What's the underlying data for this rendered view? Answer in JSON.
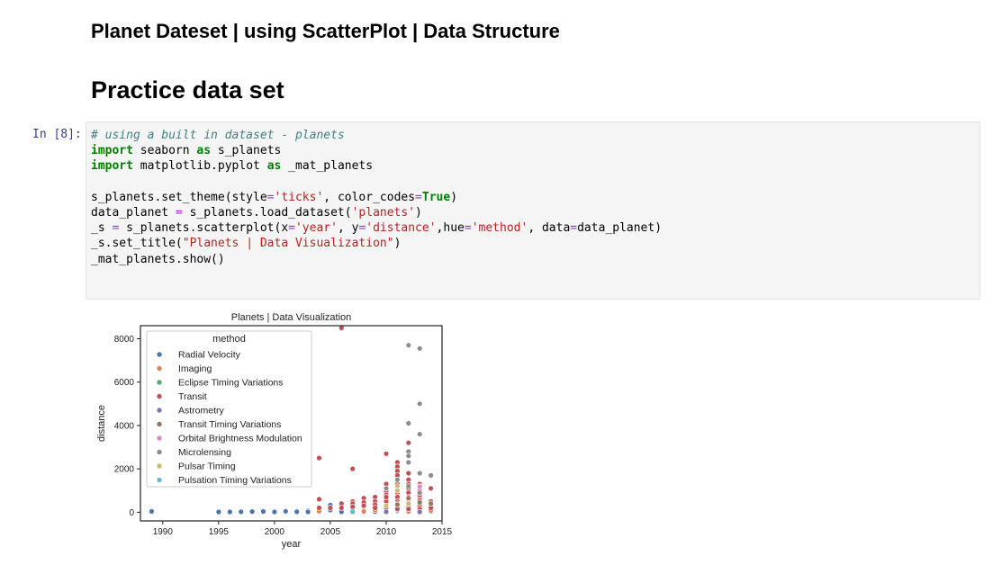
{
  "notebook": {
    "heading_2": "Planet Dateset | using ScatterPlot | Data Structure",
    "heading_1": "Practice data set",
    "cell": {
      "prompt": "In [8]:",
      "code_lines": [
        [
          {
            "t": "c",
            "v": "# using a built in dataset - planets"
          }
        ],
        [
          {
            "t": "k",
            "v": "import"
          },
          {
            "t": "n",
            "v": " seaborn "
          },
          {
            "t": "k",
            "v": "as"
          },
          {
            "t": "n",
            "v": " s_planets"
          }
        ],
        [
          {
            "t": "k",
            "v": "import"
          },
          {
            "t": "n",
            "v": " matplotlib.pyplot "
          },
          {
            "t": "k",
            "v": "as"
          },
          {
            "t": "n",
            "v": " _mat_planets"
          }
        ],
        [
          {
            "t": "n",
            "v": ""
          }
        ],
        [
          {
            "t": "n",
            "v": "s_planets.set_theme(style"
          },
          {
            "t": "o",
            "v": "="
          },
          {
            "t": "s",
            "v": "'ticks'"
          },
          {
            "t": "n",
            "v": ", color_codes"
          },
          {
            "t": "o",
            "v": "="
          },
          {
            "t": "kc",
            "v": "True"
          },
          {
            "t": "n",
            "v": ")"
          }
        ],
        [
          {
            "t": "n",
            "v": "data_planet "
          },
          {
            "t": "o",
            "v": "="
          },
          {
            "t": "n",
            "v": " s_planets.load_dataset("
          },
          {
            "t": "s",
            "v": "'planets'"
          },
          {
            "t": "n",
            "v": ")"
          }
        ],
        [
          {
            "t": "n",
            "v": "_s "
          },
          {
            "t": "o",
            "v": "="
          },
          {
            "t": "n",
            "v": " s_planets.scatterplot(x"
          },
          {
            "t": "o",
            "v": "="
          },
          {
            "t": "s",
            "v": "'year'"
          },
          {
            "t": "n",
            "v": ", y"
          },
          {
            "t": "o",
            "v": "="
          },
          {
            "t": "s",
            "v": "'distance'"
          },
          {
            "t": "n",
            "v": ",hue"
          },
          {
            "t": "o",
            "v": "="
          },
          {
            "t": "s",
            "v": "'method'"
          },
          {
            "t": "n",
            "v": ", data"
          },
          {
            "t": "o",
            "v": "="
          },
          {
            "t": "n",
            "v": "data_planet)"
          }
        ],
        [
          {
            "t": "n",
            "v": "_s.set_title("
          },
          {
            "t": "s",
            "v": "\"Planets | Data Visualization\""
          },
          {
            "t": "n",
            "v": ")"
          }
        ],
        [
          {
            "t": "n",
            "v": "_mat_planets.show()"
          }
        ]
      ]
    }
  },
  "chart_data": {
    "type": "scatter",
    "title": "Planets | Data Visualization",
    "xlabel": "year",
    "ylabel": "distance",
    "xlim": [
      1988,
      2015
    ],
    "ylim": [
      -400,
      8600
    ],
    "xticks": [
      1990,
      1995,
      2000,
      2005,
      2010,
      2015
    ],
    "yticks": [
      0,
      2000,
      4000,
      6000,
      8000
    ],
    "legend_title": "method",
    "legend_position": "upper-left",
    "series": [
      {
        "name": "Radial Velocity",
        "color": "#4c72b0",
        "points": [
          [
            1989,
            40
          ],
          [
            1995,
            15
          ],
          [
            1996,
            15
          ],
          [
            1997,
            20
          ],
          [
            1998,
            30
          ],
          [
            1999,
            35
          ],
          [
            2000,
            40
          ],
          [
            2001,
            45
          ],
          [
            2002,
            50
          ],
          [
            2003,
            60
          ],
          [
            2004,
            60
          ],
          [
            2005,
            100
          ],
          [
            2005,
            330
          ],
          [
            2006,
            70
          ],
          [
            2007,
            80
          ],
          [
            2008,
            60
          ],
          [
            2009,
            80
          ],
          [
            2010,
            60
          ],
          [
            2011,
            60
          ],
          [
            2012,
            50
          ],
          [
            2013,
            40
          ],
          [
            2014,
            40
          ],
          [
            2004,
            30
          ],
          [
            2002,
            20
          ],
          [
            2000,
            15
          ],
          [
            2003,
            15
          ],
          [
            2006,
            20
          ],
          [
            2008,
            20
          ],
          [
            2009,
            30
          ],
          [
            2010,
            20
          ],
          [
            2011,
            100
          ],
          [
            2012,
            100
          ],
          [
            2014,
            150
          ],
          [
            2013,
            120
          ]
        ]
      },
      {
        "name": "Imaging",
        "color": "#dd8452",
        "points": [
          [
            2008,
            40
          ],
          [
            2009,
            100
          ],
          [
            2010,
            50
          ],
          [
            2011,
            200
          ],
          [
            2012,
            40
          ],
          [
            2013,
            60
          ],
          [
            2014,
            80
          ],
          [
            2004,
            50
          ]
        ]
      },
      {
        "name": "Eclipse Timing Variations",
        "color": "#55a868",
        "points": [
          [
            2008,
            500
          ],
          [
            2010,
            130
          ],
          [
            2011,
            360
          ],
          [
            2012,
            200
          ],
          [
            2013,
            220
          ]
        ]
      },
      {
        "name": "Transit",
        "color": "#c44e52",
        "points": [
          [
            2006,
            8500
          ],
          [
            2004,
            2500
          ],
          [
            2007,
            2000
          ],
          [
            2010,
            2700
          ],
          [
            2012,
            3200
          ],
          [
            2011,
            2300
          ],
          [
            2011,
            2100
          ],
          [
            2011,
            1900
          ],
          [
            2012,
            1800
          ],
          [
            2011,
            1700
          ],
          [
            2011,
            1500
          ],
          [
            2012,
            1500
          ],
          [
            2013,
            1300
          ],
          [
            2010,
            1300
          ],
          [
            2010,
            1100
          ],
          [
            2012,
            1100
          ],
          [
            2014,
            1100
          ],
          [
            2013,
            1000
          ],
          [
            2013,
            900
          ],
          [
            2010,
            950
          ],
          [
            2011,
            1100
          ],
          [
            2012,
            900
          ],
          [
            2010,
            800
          ],
          [
            2011,
            900
          ],
          [
            2009,
            700
          ],
          [
            2008,
            650
          ],
          [
            2007,
            500
          ],
          [
            2009,
            500
          ],
          [
            2008,
            450
          ],
          [
            2004,
            600
          ],
          [
            2006,
            400
          ],
          [
            2007,
            400
          ],
          [
            2010,
            600
          ],
          [
            2011,
            700
          ],
          [
            2012,
            700
          ],
          [
            2013,
            700
          ],
          [
            2014,
            500
          ],
          [
            2009,
            350
          ],
          [
            2010,
            400
          ],
          [
            2011,
            500
          ],
          [
            2012,
            500
          ],
          [
            2013,
            550
          ],
          [
            2010,
            300
          ],
          [
            2011,
            300
          ],
          [
            2012,
            300
          ],
          [
            2013,
            300
          ],
          [
            2014,
            300
          ],
          [
            2008,
            300
          ],
          [
            2007,
            250
          ],
          [
            2006,
            200
          ],
          [
            2005,
            200
          ],
          [
            2004,
            200
          ],
          [
            2009,
            200
          ],
          [
            2010,
            200
          ],
          [
            2011,
            150
          ],
          [
            2012,
            150
          ],
          [
            2013,
            150
          ],
          [
            2014,
            200
          ],
          [
            2012,
            400
          ],
          [
            2013,
            450
          ],
          [
            2011,
            400
          ],
          [
            2010,
            500
          ],
          [
            2012,
            600
          ],
          [
            2013,
            800
          ],
          [
            2010,
            700
          ],
          [
            2011,
            1300
          ],
          [
            2012,
            1300
          ],
          [
            2013,
            1200
          ]
        ]
      },
      {
        "name": "Astrometry",
        "color": "#8172b3",
        "points": [
          [
            2010,
            20
          ],
          [
            2013,
            15
          ]
        ]
      },
      {
        "name": "Transit Timing Variations",
        "color": "#937860",
        "points": [
          [
            2011,
            350
          ],
          [
            2012,
            650
          ],
          [
            2013,
            450
          ],
          [
            2014,
            400
          ]
        ]
      },
      {
        "name": "Orbital Brightness Modulation",
        "color": "#da8bc3",
        "points": [
          [
            2011,
            1180
          ],
          [
            2013,
            1180
          ]
        ]
      },
      {
        "name": "Microlensing",
        "color": "#8c8c8c",
        "points": [
          [
            2012,
            7700
          ],
          [
            2013,
            7550
          ],
          [
            2013,
            5000
          ],
          [
            2012,
            4100
          ],
          [
            2013,
            3600
          ],
          [
            2012,
            2800
          ],
          [
            2012,
            2600
          ],
          [
            2012,
            2300
          ],
          [
            2013,
            1800
          ],
          [
            2014,
            1700
          ],
          [
            2011,
            1500
          ],
          [
            2010,
            1100
          ],
          [
            2012,
            1200
          ],
          [
            2013,
            900
          ]
        ]
      },
      {
        "name": "Pulsar Timing",
        "color": "#ccb974",
        "points": [
          [
            2011,
            1200
          ],
          [
            2011,
            1000
          ],
          [
            2010,
            300
          ],
          [
            2012,
            400
          ]
        ]
      },
      {
        "name": "Pulsation Timing Variations",
        "color": "#64b5cd",
        "points": [
          [
            2007,
            20
          ]
        ]
      }
    ]
  }
}
